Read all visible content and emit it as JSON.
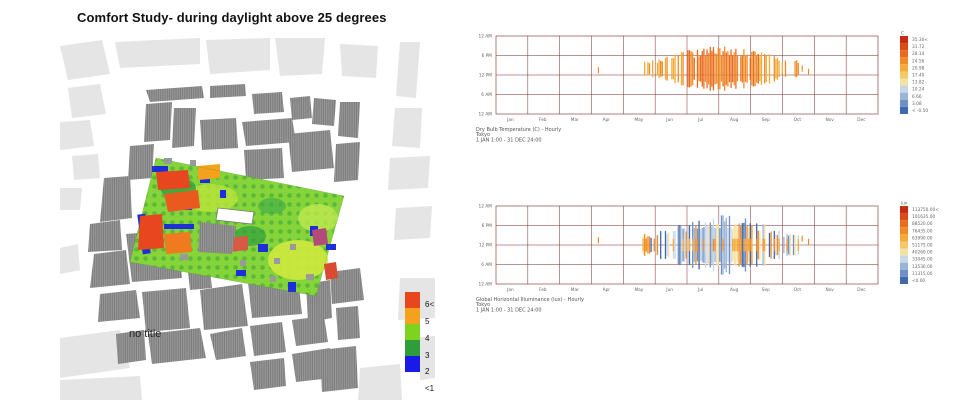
{
  "page": {
    "title": "Comfort Study- during daylight above 25 degrees"
  },
  "map": {
    "label": "no title",
    "legend": [
      {
        "label": "6<",
        "color": "#e8461e"
      },
      {
        "label": "5",
        "color": "#f4a11e"
      },
      {
        "label": "4",
        "color": "#7ed321"
      },
      {
        "label": "3",
        "color": "#2e9e3a"
      },
      {
        "label": "2",
        "color": "#1a1ae6"
      },
      {
        "label": "<1",
        "color": "#ffffff"
      }
    ]
  },
  "charts": [
    {
      "caption": "Dry Bulb Temperature (C) - Hourly",
      "location": "Tokyo",
      "period": "1 JAN 1:00 - 31 DEC 24:00",
      "unit": "C",
      "ytick_labels": [
        "12 AM",
        "6 PM",
        "12 PM",
        "6 AM",
        "12 AM"
      ],
      "months": [
        "Jan",
        "Feb",
        "Mar",
        "Apr",
        "May",
        "Jun",
        "Jul",
        "Aug",
        "Sep",
        "Oct",
        "Nov",
        "Dec"
      ],
      "legend_labels": [
        "35.30<",
        "31.72",
        "28.14",
        "24.56",
        "20.98",
        "17.40",
        "13.82",
        "10.24",
        "6.66",
        "3.08",
        "< -0.50"
      ],
      "legend_colors": [
        "#c62c10",
        "#dc4a1a",
        "#ea6a1f",
        "#f08c27",
        "#f4ab3a",
        "#f5c968",
        "#f3e2a6",
        "#c9d6e8",
        "#9ab4d8",
        "#6e92c6",
        "#3f69ad"
      ]
    },
    {
      "caption": "Global Horizontal Illuminance (lux) - Hourly",
      "location": "Tokyo",
      "period": "1 JAN 1:00 - 31 DEC 24:00",
      "unit": "lux",
      "ytick_labels": [
        "12 AM",
        "6 PM",
        "12 PM",
        "6 AM",
        "12 AM"
      ],
      "months": [
        "Jan",
        "Feb",
        "Mar",
        "Apr",
        "May",
        "Jun",
        "Jul",
        "Aug",
        "Sep",
        "Oct",
        "Nov",
        "Dec"
      ],
      "legend_labels": [
        "113750.00<",
        "101635.00",
        "88520.00",
        "76435.00",
        "63990.00",
        "51175.00",
        "40260.00",
        "33045.00",
        "13530.00",
        "11315.00",
        "<0.00"
      ],
      "legend_colors": [
        "#c62c10",
        "#dc4a1a",
        "#ea6a1f",
        "#f08c27",
        "#f4ab3a",
        "#f5c968",
        "#f3e2a6",
        "#c9d6e8",
        "#9ab4d8",
        "#6e92c6",
        "#3f69ad"
      ]
    }
  ]
}
